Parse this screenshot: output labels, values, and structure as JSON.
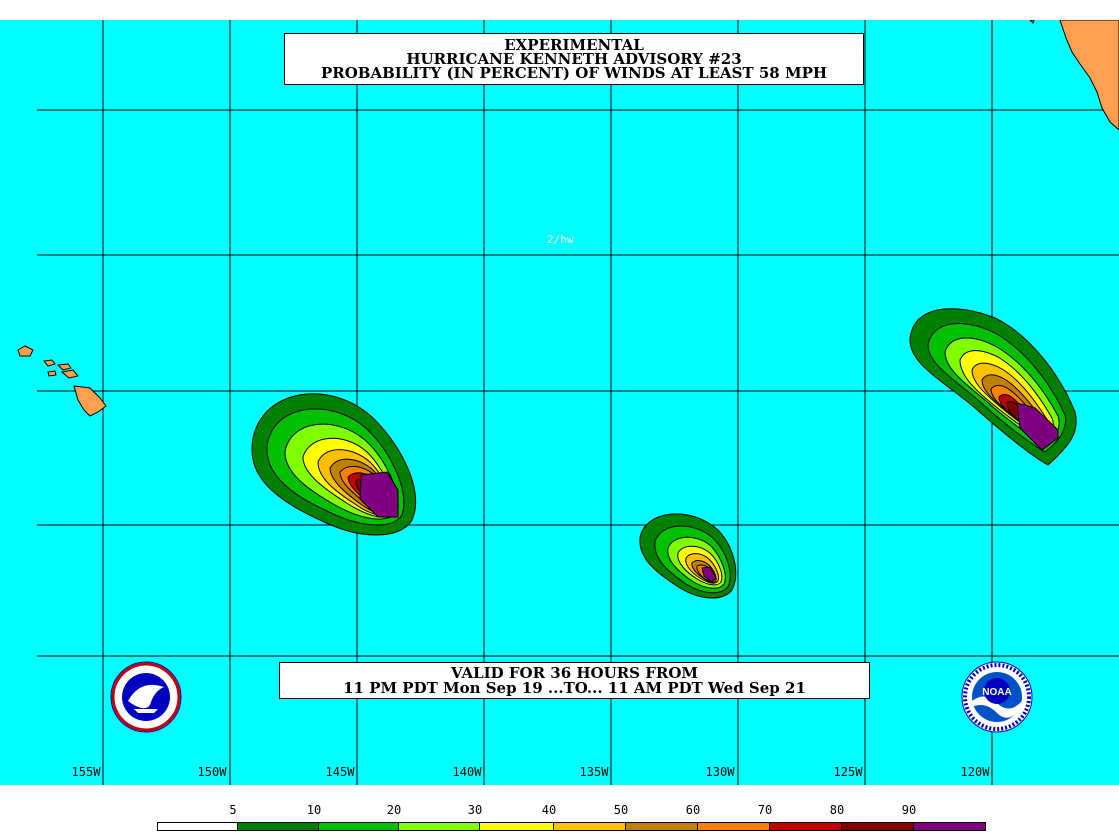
{
  "title": {
    "line1": "EXPERIMENTAL",
    "line2": "HURRICANE KENNETH ADVISORY #23",
    "line3": "PROBABILITY (IN PERCENT) OF WINDS AT LEAST 58 MPH"
  },
  "valid": {
    "line1": "VALID FOR 36 HOURS FROM",
    "line2": "11 PM PDT Mon Sep 19 ...TO... 11 AM PDT Wed Sep 21"
  },
  "credit": "2/hw",
  "longitude_labels": [
    "155W",
    "150W",
    "145W",
    "140W",
    "135W",
    "130W",
    "125W",
    "120W"
  ],
  "logos": {
    "left": "nws-logo-icon",
    "right": "noaa-logo-icon"
  },
  "legend": {
    "thresholds": [
      "5",
      "10",
      "20",
      "30",
      "40",
      "50",
      "60",
      "70",
      "80",
      "90"
    ],
    "colors": [
      "#ffffff",
      "#008000",
      "#00c000",
      "#80ff00",
      "#ffff00",
      "#ffc000",
      "#c08000",
      "#ff8000",
      "#c00000",
      "#800000",
      "#800080"
    ]
  },
  "colors": {
    "ocean": "#00ffff",
    "land": "#ffa050",
    "grid": "#000000"
  }
}
